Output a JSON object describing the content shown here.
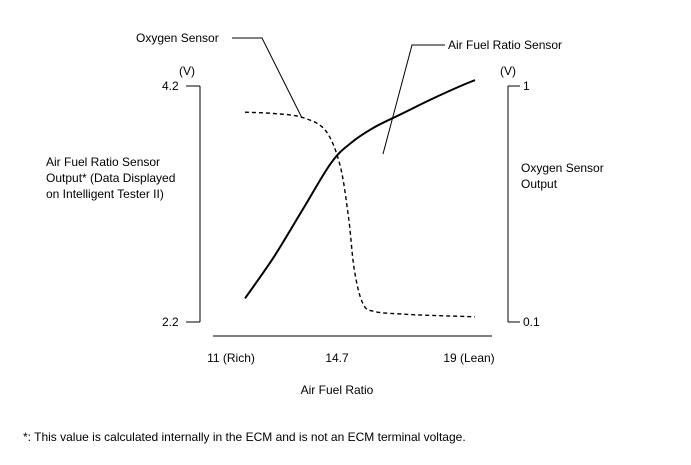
{
  "chart_data": {
    "type": "line",
    "x_axis": {
      "label": "Air Fuel Ratio",
      "ticks": [
        {
          "value": 11,
          "label": "11 (Rich)"
        },
        {
          "value": 14.7,
          "label": "14.7"
        },
        {
          "value": 19,
          "label": "19 (Lean)"
        }
      ],
      "range": [
        10.85,
        19
      ]
    },
    "y_left": {
      "label_lines": [
        "Air Fuel Ratio Sensor",
        "Output* (Data Displayed",
        "on Intelligent Tester II)"
      ],
      "unit": "(V)",
      "ticks": [
        {
          "value": 4.2,
          "label": "4.2"
        },
        {
          "value": 2.2,
          "label": "2.2"
        }
      ],
      "range": [
        2.2,
        4.2
      ]
    },
    "y_right": {
      "label_lines": [
        "Oxygen Sensor",
        "Output"
      ],
      "unit": "(V)",
      "ticks": [
        {
          "value": 1,
          "label": "1"
        },
        {
          "value": 0.1,
          "label": "0.1"
        }
      ],
      "range": [
        0.1,
        1
      ]
    },
    "series": [
      {
        "name": "Air Fuel Ratio Sensor",
        "axis": "left",
        "style": "solid",
        "color": "#000000",
        "points": [
          [
            11.0,
            2.4
          ],
          [
            12.0,
            2.75
          ],
          [
            13.0,
            3.15
          ],
          [
            14.0,
            3.55
          ],
          [
            14.7,
            3.72
          ],
          [
            15.5,
            3.85
          ],
          [
            16.5,
            3.97
          ],
          [
            17.5,
            4.09
          ],
          [
            18.5,
            4.2
          ],
          [
            19.0,
            4.25
          ]
        ]
      },
      {
        "name": "Oxygen Sensor",
        "axis": "right",
        "style": "dashed",
        "color": "#000000",
        "points": [
          [
            11.0,
            0.9
          ],
          [
            12.0,
            0.895
          ],
          [
            13.0,
            0.88
          ],
          [
            13.8,
            0.83
          ],
          [
            14.3,
            0.7
          ],
          [
            14.6,
            0.5
          ],
          [
            14.8,
            0.3
          ],
          [
            15.1,
            0.17
          ],
          [
            15.5,
            0.14
          ],
          [
            16.5,
            0.13
          ],
          [
            17.5,
            0.125
          ],
          [
            19.0,
            0.12
          ]
        ]
      }
    ],
    "annotations": [
      {
        "text": "Oxygen Sensor",
        "series": "Oxygen Sensor"
      },
      {
        "text": "Air Fuel Ratio Sensor",
        "series": "Air Fuel Ratio Sensor"
      }
    ],
    "footnote": "*: This value is calculated internally in the ECM and is not an ECM terminal voltage.",
    "legend": "none",
    "grid": false
  }
}
